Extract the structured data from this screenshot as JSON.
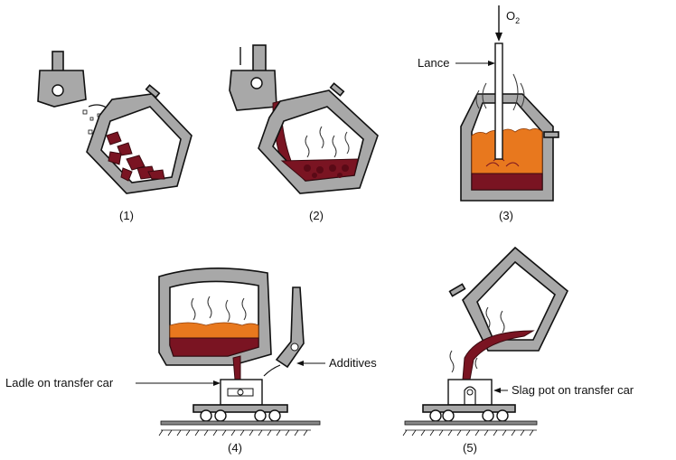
{
  "steps": [
    {
      "number_label": "(1)"
    },
    {
      "number_label": "(2)"
    },
    {
      "number_label": "(3)",
      "lance_label": "Lance",
      "oxygen_label": "O",
      "oxygen_subscript": "2"
    },
    {
      "number_label": "(4)",
      "additives_label": "Additives",
      "ladle_label": "Ladle on transfer car"
    },
    {
      "number_label": "(5)",
      "slag_pot_label": "Slag pot on transfer car"
    }
  ],
  "colors": {
    "vessel_gray": "#a8a8a8",
    "molten_metal": "#7a1422",
    "slag_orange": "#e8781e",
    "outline": "#111111"
  }
}
